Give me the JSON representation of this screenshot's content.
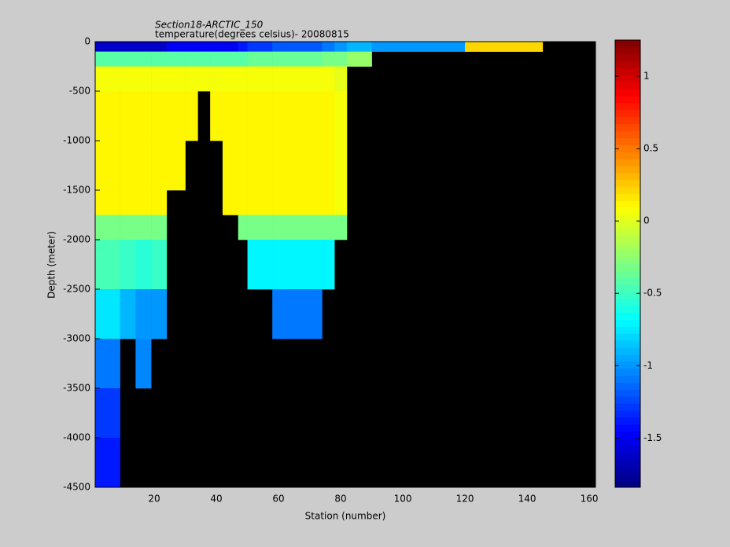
{
  "chart_data": {
    "type": "heatmap",
    "title": "Section18-ARCTIC_150",
    "subtitle": "temperature(degrees celsius)- 20080815",
    "x_label": "Station (number)",
    "y_label": "Depth (meter)",
    "xlim": [
      1,
      162
    ],
    "xticks": [
      20,
      40,
      60,
      80,
      100,
      120,
      140,
      160
    ],
    "ylim": [
      -4500,
      0
    ],
    "yticks": [
      -4500,
      -4000,
      -3500,
      -3000,
      -2500,
      -2000,
      -1500,
      -1000,
      -500,
      0
    ],
    "x_edges": [
      1,
      9,
      14,
      19,
      24,
      30,
      34,
      38,
      42,
      47,
      50,
      58,
      74,
      78,
      82,
      90,
      120,
      145
    ],
    "y_edges": [
      0,
      -100,
      -250,
      -500,
      -1000,
      -1500,
      -1750,
      -2000,
      -2500,
      -3000,
      -3500,
      -4000,
      -4500
    ],
    "z": [
      [
        -1.6,
        -0.4,
        0.05,
        0.1,
        0.1,
        0.1,
        -0.3,
        -0.45,
        -0.75,
        -1.1,
        -1.3,
        -1.4
      ],
      [
        -1.6,
        -0.4,
        0.05,
        0.1,
        0.1,
        0.1,
        -0.3,
        -0.5,
        -0.9,
        null,
        null,
        null
      ],
      [
        -1.6,
        -0.4,
        0.05,
        0.1,
        0.1,
        0.1,
        -0.3,
        -0.55,
        -1.0,
        -1.05,
        null,
        null
      ],
      [
        -1.6,
        -0.4,
        0.05,
        0.1,
        0.1,
        0.1,
        -0.3,
        -0.5,
        -1.0,
        null,
        null,
        null
      ],
      [
        -1.5,
        -0.4,
        0.05,
        0.1,
        0.1,
        null,
        null,
        null,
        null,
        null,
        null,
        null
      ],
      [
        -1.5,
        -0.4,
        0.05,
        0.1,
        null,
        null,
        null,
        null,
        null,
        null,
        null,
        null
      ],
      [
        -1.5,
        -0.4,
        0.05,
        null,
        null,
        null,
        null,
        null,
        null,
        null,
        null,
        null
      ],
      [
        -1.5,
        -0.4,
        0.05,
        0.1,
        null,
        null,
        null,
        null,
        null,
        null,
        null,
        null
      ],
      [
        -1.5,
        -0.4,
        0.05,
        0.1,
        0.1,
        0.1,
        null,
        null,
        null,
        null,
        null,
        null
      ],
      [
        -1.4,
        -0.4,
        0.05,
        0.1,
        0.1,
        0.1,
        -0.3,
        null,
        null,
        null,
        null,
        null
      ],
      [
        -1.3,
        -0.35,
        0.05,
        0.1,
        0.1,
        0.1,
        -0.3,
        -0.7,
        null,
        null,
        null,
        null
      ],
      [
        -1.2,
        -0.35,
        0.05,
        0.1,
        0.1,
        0.1,
        -0.3,
        -0.7,
        -1.1,
        null,
        null,
        null
      ],
      [
        -1.1,
        -0.3,
        0.05,
        0.1,
        0.1,
        0.1,
        -0.3,
        -0.7,
        null,
        null,
        null,
        null
      ],
      [
        -1.0,
        -0.3,
        0.0,
        0.05,
        0.05,
        0.05,
        -0.3,
        null,
        null,
        null,
        null,
        null
      ],
      [
        -0.9,
        -0.2,
        null,
        null,
        null,
        null,
        null,
        null,
        null,
        null,
        null,
        null
      ],
      [
        -1.0,
        null,
        null,
        null,
        null,
        null,
        null,
        null,
        null,
        null,
        null,
        null
      ],
      [
        0.2,
        null,
        null,
        null,
        null,
        null,
        null,
        null,
        null,
        null,
        null,
        null
      ]
    ],
    "colormap": "jet",
    "clim": [
      -1.84,
      1.25
    ],
    "cticks": [
      -1.5,
      -1,
      -0.5,
      0,
      0.5,
      1
    ],
    "null_color": "#000000"
  }
}
